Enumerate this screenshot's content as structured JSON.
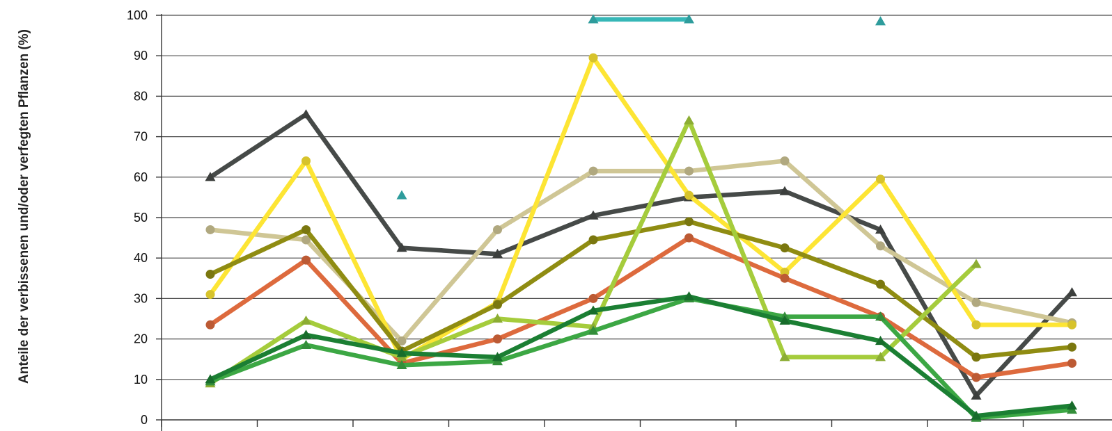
{
  "chart_data": {
    "type": "line",
    "ylabel": "Anteile der verbissenen und/oder verfegten Pflanzen (%)",
    "ylim": [
      0,
      100
    ],
    "yticks": [
      0,
      10,
      20,
      30,
      40,
      50,
      60,
      70,
      80,
      90,
      100
    ],
    "grid": true,
    "x": [
      1,
      2,
      3,
      4,
      5,
      6,
      7,
      8,
      9,
      10
    ],
    "series": [
      {
        "color": "#36b7b7",
        "marker": "triangle",
        "values": [
          null,
          null,
          55.5,
          null,
          99,
          99,
          null,
          98.5,
          null,
          null
        ]
      },
      {
        "color": "#464a48",
        "marker": "triangle",
        "values": [
          60,
          75.5,
          42.5,
          41,
          50.5,
          55,
          56.5,
          47,
          6,
          31.5
        ]
      },
      {
        "color": "#cfc695",
        "marker": "circle",
        "values": [
          47,
          44.5,
          19.5,
          47,
          61.5,
          61.5,
          64,
          43,
          29,
          24
        ]
      },
      {
        "color": "#fde534",
        "marker": "circle",
        "values": [
          31,
          64,
          15,
          29,
          89.5,
          55.5,
          36.5,
          59.5,
          23.5,
          23.5
        ]
      },
      {
        "color": "#8f8c12",
        "marker": "circle",
        "values": [
          36,
          47,
          17,
          28.5,
          44.5,
          49,
          42.5,
          33.5,
          15.5,
          18
        ]
      },
      {
        "color": "#dd6a3d",
        "marker": "circle",
        "values": [
          23.5,
          39.5,
          14,
          20,
          30,
          45,
          35,
          25.5,
          10.5,
          14
        ]
      },
      {
        "color": "#a5cc3c",
        "marker": "triangle",
        "values": [
          9,
          24.5,
          15.5,
          25,
          23,
          74,
          15.5,
          15.5,
          38.5,
          null
        ]
      },
      {
        "color": "#3ca744",
        "marker": "triangle",
        "values": [
          9.5,
          18.5,
          13.5,
          14.5,
          22,
          30,
          25.5,
          25.5,
          0.5,
          2.5
        ]
      },
      {
        "color": "#1b7f33",
        "marker": "triangle",
        "values": [
          10,
          21,
          16.5,
          15.5,
          27,
          30.5,
          24.5,
          19.5,
          1,
          3.5
        ]
      }
    ]
  }
}
